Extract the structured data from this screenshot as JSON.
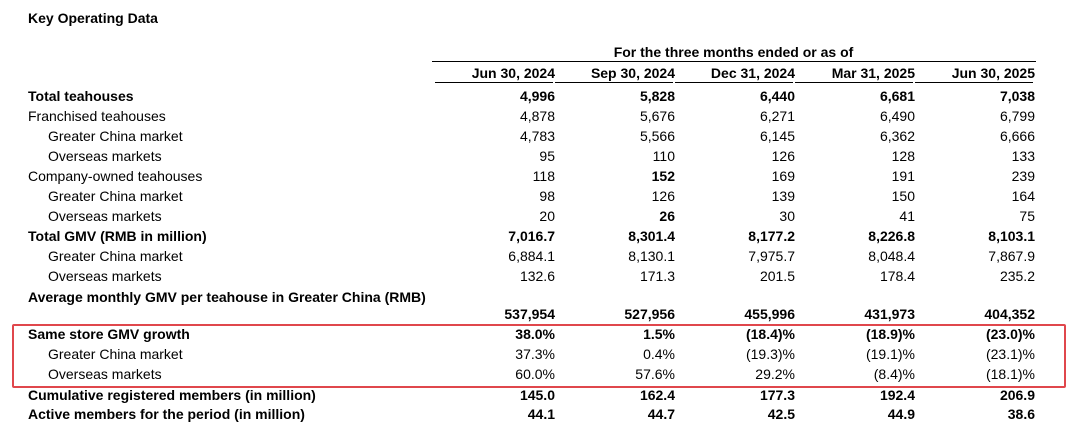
{
  "title": "Key Operating Data",
  "table": {
    "group_header": "For the three months ended or as of",
    "columns": [
      "Jun 30, 2024",
      "Sep 30, 2024",
      "Dec 31, 2024",
      "Mar 31, 2025",
      "Jun 30, 2025"
    ],
    "rows": [
      [
        "Total teahouses",
        "4,996",
        "5,828",
        "6,440",
        "6,681",
        "7,038"
      ],
      [
        "Franchised teahouses",
        "4,878",
        "5,676",
        "6,271",
        "6,490",
        "6,799"
      ],
      [
        "Greater China market",
        "4,783",
        "5,566",
        "6,145",
        "6,362",
        "6,666"
      ],
      [
        "Overseas markets",
        "95",
        "110",
        "126",
        "128",
        "133"
      ],
      [
        "Company-owned teahouses",
        "118",
        "152",
        "169",
        "191",
        "239"
      ],
      [
        "Greater China market",
        "98",
        "126",
        "139",
        "150",
        "164"
      ],
      [
        "Overseas markets",
        "20",
        "26",
        "30",
        "41",
        "75"
      ],
      [
        "Total GMV (RMB in million)",
        "7,016.7",
        "8,301.4",
        "8,177.2",
        "8,226.8",
        "8,103.1"
      ],
      [
        "Greater China market",
        "6,884.1",
        "8,130.1",
        "7,975.7",
        "8,048.4",
        "7,867.9"
      ],
      [
        "Overseas markets",
        "132.6",
        "171.3",
        "201.5",
        "178.4",
        "235.2"
      ],
      [
        "Average monthly GMV per teahouse in Greater China (RMB)",
        "537,954",
        "527,956",
        "455,996",
        "431,973",
        "404,352"
      ],
      [
        "Same store GMV growth",
        "38.0%",
        "1.5%",
        "(18.4)%",
        "(18.9)%",
        "(23.0)%"
      ],
      [
        "Greater China market",
        "37.3%",
        "0.4%",
        "(19.3)%",
        "(19.1)%",
        "(23.1)%"
      ],
      [
        "Overseas markets",
        "60.0%",
        "57.6%",
        "29.2%",
        "(8.4)%",
        "(18.1)%"
      ],
      [
        "Cumulative registered members (in million)",
        "145.0",
        "162.4",
        "177.3",
        "192.4",
        "206.9"
      ],
      [
        "Active members for the period (in million)",
        "44.1",
        "44.7",
        "42.5",
        "44.9",
        "38.6"
      ]
    ]
  }
}
